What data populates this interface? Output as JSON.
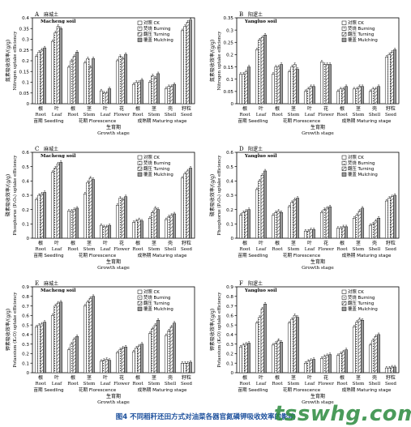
{
  "caption": "图4  不同稻秆还田方式对油菜各器官氮磷钾吸收效率的影响",
  "watermark": "tsswhg.com",
  "chart_data": {
    "type": "bar",
    "stage_axis": {
      "labels_cn": [
        "根",
        "叶",
        "根",
        "茎",
        "叶",
        "花",
        "根",
        "茎",
        "壳",
        "籽粒"
      ],
      "labels_en": [
        "Root",
        "Leaf",
        "Root",
        "Stem",
        "Leaf",
        "Flower",
        "Root",
        "Stem",
        "Shell",
        "Seed"
      ],
      "groups": [
        {
          "cn": "苗期",
          "en": "Seedling",
          "span": [
            0,
            1
          ]
        },
        {
          "cn": "花期",
          "en": "Florescence",
          "span": [
            2,
            5
          ]
        },
        {
          "cn": "成熟期",
          "en": "Maturing stage",
          "span": [
            6,
            9
          ]
        }
      ],
      "title_cn": "生育期",
      "title_en": "Growth stage"
    },
    "legend": [
      {
        "cn": "对照",
        "en": "CK",
        "pattern": "white"
      },
      {
        "cn": "焚烧",
        "en": "Burning",
        "pattern": "dots"
      },
      {
        "cn": "翻压",
        "en": "Turning",
        "pattern": "hatch"
      },
      {
        "cn": "覆盖",
        "en": "Mulching",
        "pattern": "gray"
      }
    ],
    "panels": [
      {
        "id": "A",
        "soil_cn": "麻城土",
        "soil_en": "Macheng soil",
        "ylabel_cn": "氮素吸收效率/(g/g)",
        "ylabel_en": "Nitrogen uptake efficiency",
        "ylim": [
          0,
          0.4
        ],
        "yticks": [
          0,
          0.05,
          0.1,
          0.15,
          0.2,
          0.25,
          0.3,
          0.35,
          0.4
        ],
        "series": [
          {
            "name": "CK",
            "values": [
              0.22,
              0.29,
              0.17,
              0.19,
              0.06,
              0.2,
              0.09,
              0.1,
              0.07,
              0.34
            ]
          },
          {
            "name": "Burning",
            "values": [
              0.24,
              0.33,
              0.2,
              0.21,
              0.05,
              0.22,
              0.1,
              0.13,
              0.08,
              0.36
            ]
          },
          {
            "name": "Turning",
            "values": [
              0.25,
              0.36,
              0.22,
              0.17,
              0.05,
              0.21,
              0.1,
              0.12,
              0.08,
              0.38
            ]
          },
          {
            "name": "Mulching",
            "values": [
              0.26,
              0.35,
              0.24,
              0.21,
              0.07,
              0.23,
              0.11,
              0.14,
              0.09,
              0.39
            ]
          }
        ]
      },
      {
        "id": "B",
        "soil_cn": "阳逻土",
        "soil_en": "Yangluo soil",
        "ylabel_cn": "氮素吸收效率/(g/g)",
        "ylabel_en": "Nitrogen uptake efficiency",
        "ylim": [
          0,
          0.35
        ],
        "yticks": [
          0,
          0.05,
          0.1,
          0.15,
          0.2,
          0.25,
          0.3,
          0.35
        ],
        "series": [
          {
            "name": "CK",
            "values": [
              0.12,
              0.22,
              0.12,
              0.13,
              0.05,
              0.17,
              0.05,
              0.06,
              0.05,
              0.19
            ]
          },
          {
            "name": "Burning",
            "values": [
              0.12,
              0.26,
              0.15,
              0.15,
              0.06,
              0.16,
              0.06,
              0.06,
              0.06,
              0.2
            ]
          },
          {
            "name": "Turning",
            "values": [
              0.13,
              0.27,
              0.15,
              0.16,
              0.07,
              0.16,
              0.06,
              0.07,
              0.06,
              0.21
            ]
          },
          {
            "name": "Mulching",
            "values": [
              0.15,
              0.28,
              0.16,
              0.14,
              0.07,
              0.16,
              0.07,
              0.07,
              0.07,
              0.22
            ]
          }
        ]
      },
      {
        "id": "C",
        "soil_cn": "麻城土",
        "soil_en": "Macheng soil",
        "ylabel_cn": "磷素吸收效率/(g/g)",
        "ylabel_en": "Phosphorus (P₂O₅) uptake efficiency",
        "ylim": [
          0,
          0.6
        ],
        "yticks": [
          0,
          0.1,
          0.2,
          0.3,
          0.4,
          0.5,
          0.6
        ],
        "series": [
          {
            "name": "CK",
            "values": [
              0.27,
              0.46,
              0.19,
              0.31,
              0.09,
              0.23,
              0.11,
              0.14,
              0.13,
              0.42
            ]
          },
          {
            "name": "Burning",
            "values": [
              0.3,
              0.49,
              0.19,
              0.39,
              0.08,
              0.28,
              0.12,
              0.18,
              0.15,
              0.45
            ]
          },
          {
            "name": "Turning",
            "values": [
              0.31,
              0.52,
              0.2,
              0.42,
              0.08,
              0.27,
              0.13,
              0.21,
              0.16,
              0.47
            ]
          },
          {
            "name": "Mulching",
            "values": [
              0.32,
              0.53,
              0.21,
              0.41,
              0.09,
              0.29,
              0.12,
              0.2,
              0.17,
              0.49
            ]
          }
        ]
      },
      {
        "id": "D",
        "soil_cn": "阳逻土",
        "soil_en": "Yangluo soil",
        "ylabel_cn": "磷素吸收效率/(g/g)",
        "ylabel_en": "Phosphorus (P₂O₅) uptake efficiency",
        "ylim": [
          0,
          0.6
        ],
        "yticks": [
          0,
          0.1,
          0.2,
          0.3,
          0.4,
          0.5,
          0.6
        ],
        "series": [
          {
            "name": "CK",
            "values": [
              0.16,
              0.34,
              0.16,
              0.22,
              0.05,
              0.18,
              0.07,
              0.14,
              0.09,
              0.26
            ]
          },
          {
            "name": "Burning",
            "values": [
              0.18,
              0.4,
              0.18,
              0.25,
              0.05,
              0.2,
              0.07,
              0.16,
              0.1,
              0.28
            ]
          },
          {
            "name": "Turning",
            "values": [
              0.19,
              0.44,
              0.19,
              0.27,
              0.06,
              0.21,
              0.08,
              0.19,
              0.12,
              0.29
            ]
          },
          {
            "name": "Mulching",
            "values": [
              0.2,
              0.47,
              0.18,
              0.28,
              0.06,
              0.22,
              0.08,
              0.21,
              0.14,
              0.3
            ]
          }
        ]
      },
      {
        "id": "E",
        "soil_cn": "麻城土",
        "soil_en": "Macheng soil",
        "ylabel_cn": "钾素吸收效率/(g/g)",
        "ylabel_en": "Potassium (K₂O) uptake efficiency",
        "ylim": [
          0,
          0.9
        ],
        "yticks": [
          0,
          0.1,
          0.2,
          0.3,
          0.4,
          0.5,
          0.6,
          0.7,
          0.8,
          0.9
        ],
        "series": [
          {
            "name": "CK",
            "values": [
              0.48,
              0.6,
              0.24,
              0.7,
              0.12,
              0.21,
              0.22,
              0.41,
              0.39,
              0.1
            ]
          },
          {
            "name": "Burning",
            "values": [
              0.5,
              0.7,
              0.3,
              0.74,
              0.13,
              0.24,
              0.26,
              0.46,
              0.44,
              0.1
            ]
          },
          {
            "name": "Turning",
            "values": [
              0.51,
              0.73,
              0.35,
              0.78,
              0.14,
              0.26,
              0.28,
              0.5,
              0.48,
              0.1
            ]
          },
          {
            "name": "Mulching",
            "values": [
              0.53,
              0.74,
              0.38,
              0.8,
              0.13,
              0.27,
              0.3,
              0.55,
              0.52,
              0.11
            ]
          }
        ]
      },
      {
        "id": "F",
        "soil_cn": "阳逻土",
        "soil_en": "Yangluo soil",
        "ylabel_cn": "钾素吸收效率/(g/g)",
        "ylabel_en": "Potassium (K₂O) uptake efficiency",
        "ylim": [
          0,
          0.9
        ],
        "yticks": [
          0,
          0.1,
          0.2,
          0.3,
          0.4,
          0.5,
          0.6,
          0.7,
          0.8,
          0.9
        ],
        "series": [
          {
            "name": "CK",
            "values": [
              0.27,
              0.52,
              0.29,
              0.52,
              0.1,
              0.15,
              0.18,
              0.48,
              0.29,
              0.05
            ]
          },
          {
            "name": "Burning",
            "values": [
              0.29,
              0.58,
              0.31,
              0.56,
              0.12,
              0.17,
              0.2,
              0.53,
              0.34,
              0.05
            ]
          },
          {
            "name": "Turning",
            "values": [
              0.3,
              0.67,
              0.34,
              0.6,
              0.13,
              0.18,
              0.22,
              0.56,
              0.38,
              0.06
            ]
          },
          {
            "name": "Mulching",
            "values": [
              0.31,
              0.72,
              0.32,
              0.58,
              0.14,
              0.19,
              0.24,
              0.55,
              0.4,
              0.06
            ]
          }
        ]
      }
    ]
  }
}
